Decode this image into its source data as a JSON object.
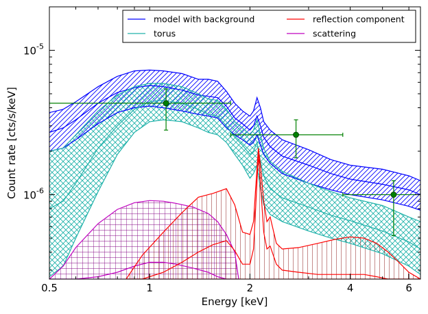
{
  "chart_data": {
    "type": "line",
    "xlabel": "Energy [keV]",
    "ylabel": "Count rate [cts/s/keV]",
    "xscale": "log",
    "yscale": "log",
    "xlim": [
      0.5,
      6.5
    ],
    "ylim": [
      2.6e-07,
      2e-05
    ],
    "x_ticks": [
      {
        "value": 0.5,
        "label": "0.5"
      },
      {
        "value": 1,
        "label": "1"
      },
      {
        "value": 2,
        "label": "2"
      },
      {
        "value": 4,
        "label": "4"
      },
      {
        "value": 6,
        "label": "6"
      }
    ],
    "y_ticks": [
      {
        "value": 1e-06,
        "base": "10",
        "exp": "-6"
      },
      {
        "value": 1e-05,
        "base": "10",
        "exp": "-5"
      }
    ],
    "legend": {
      "placement": "top-right",
      "columns": 2,
      "entries": [
        {
          "label": "model with background",
          "color": "#0000ff"
        },
        {
          "label": "reflection component",
          "color": "#ff0000"
        },
        {
          "label": "torus",
          "color": "#20b2aa"
        },
        {
          "label": "scattering",
          "color": "#bf00bf"
        }
      ]
    },
    "bands": [
      {
        "name": "model with background",
        "color": "#0000ff",
        "hatch": "diagonal",
        "x": [
          0.5,
          0.55,
          0.6,
          0.7,
          0.8,
          0.9,
          1.0,
          1.1,
          1.25,
          1.4,
          1.5,
          1.6,
          1.7,
          1.8,
          1.9,
          2.0,
          2.05,
          2.1,
          2.15,
          2.2,
          2.3,
          2.5,
          3.0,
          3.5,
          4.0,
          5.0,
          6.0,
          6.5
        ],
        "upper": [
          3.7e-06,
          3.9e-06,
          4.4e-06,
          5.6e-06,
          6.6e-06,
          7.2e-06,
          7.3e-06,
          7.2e-06,
          6.9e-06,
          6.3e-06,
          6.3e-06,
          6.1e-06,
          5.2e-06,
          4.3e-06,
          3.8e-06,
          3.5e-06,
          3.8e-06,
          4.7e-06,
          4e-06,
          3.2e-06,
          2.8e-06,
          2.4e-06,
          2.05e-06,
          1.75e-06,
          1.6e-06,
          1.5e-06,
          1.35e-06,
          1.25e-06
        ],
        "lower": [
          2e-06,
          2.1e-06,
          2.4e-06,
          3.1e-06,
          3.7e-06,
          4e-06,
          4.1e-06,
          4e-06,
          3.8e-06,
          3.6e-06,
          3.5e-06,
          3.4e-06,
          2.9e-06,
          2.6e-06,
          2.4e-06,
          2.2e-06,
          2.3e-06,
          2.6e-06,
          2.2e-06,
          1.9e-06,
          1.65e-06,
          1.4e-06,
          1.2e-06,
          1.08e-06,
          1e-06,
          9.2e-07,
          8.3e-07,
          7.8e-07
        ],
        "mid": [
          2.7e-06,
          2.9e-06,
          3.3e-06,
          4.3e-06,
          5.1e-06,
          5.5e-06,
          5.7e-06,
          5.6e-06,
          5.3e-06,
          4.9e-06,
          4.8e-06,
          4.7e-06,
          4.1e-06,
          3.4e-06,
          3.1e-06,
          2.8e-06,
          3e-06,
          3.5e-06,
          3e-06,
          2.5e-06,
          2.15e-06,
          1.85e-06,
          1.6e-06,
          1.4e-06,
          1.28e-06,
          1.18e-06,
          1.08e-06,
          1e-06
        ]
      },
      {
        "name": "torus",
        "color": "#20b2aa",
        "hatch": "cross",
        "x": [
          0.5,
          0.55,
          0.6,
          0.7,
          0.8,
          0.9,
          1.0,
          1.1,
          1.25,
          1.4,
          1.5,
          1.6,
          1.7,
          1.8,
          1.9,
          2.0,
          2.05,
          2.1,
          2.15,
          2.2,
          2.3,
          2.5,
          3.0,
          3.5,
          4.0,
          5.0,
          6.0,
          6.5
        ],
        "upper": [
          2e-06,
          2.1e-06,
          2.6e-06,
          3.8e-06,
          4.9e-06,
          5.6e-06,
          5.9e-06,
          5.9e-06,
          5.6e-06,
          5e-06,
          4.6e-06,
          4.5e-06,
          3.9e-06,
          3.2e-06,
          2.9e-06,
          2.6e-06,
          2.8e-06,
          3.3e-06,
          2.6e-06,
          2.1e-06,
          1.7e-06,
          1.45e-06,
          1.2e-06,
          1.05e-06,
          9.5e-07,
          8.4e-07,
          7e-07,
          6.5e-07
        ],
        "lower": [
          2.7e-07,
          3.2e-07,
          5e-07,
          1.05e-06,
          1.9e-06,
          2.7e-06,
          3.2e-06,
          3.3e-06,
          3.2e-06,
          2.9e-06,
          2.7e-06,
          2.6e-06,
          2.3e-06,
          1.9e-06,
          1.6e-06,
          1.3e-06,
          1.4e-06,
          1.6e-06,
          1.1e-06,
          8.5e-07,
          7.3e-07,
          6.5e-07,
          5.6e-07,
          5e-07,
          4.6e-07,
          3.9e-07,
          3.2e-07,
          2.8e-07
        ],
        "mid": [
          8e-07,
          9e-07,
          1.2e-06,
          2.1e-06,
          3e-06,
          3.9e-06,
          4.4e-06,
          4.5e-06,
          4.3e-06,
          3.9e-06,
          3.6e-06,
          3.5e-06,
          3e-06,
          2.5e-06,
          2.2e-06,
          1.9e-06,
          2e-06,
          2.3e-06,
          1.7e-06,
          1.35e-06,
          1.1e-06,
          9.5e-07,
          8.2e-07,
          7.2e-07,
          6.6e-07,
          5.6e-07,
          4.7e-07,
          4.2e-07
        ]
      },
      {
        "name": "scattering",
        "color": "#bf00bf",
        "hatch": "grid",
        "x": [
          0.5,
          0.55,
          0.6,
          0.7,
          0.8,
          0.9,
          1.0,
          1.1,
          1.2,
          1.35,
          1.5,
          1.6,
          1.7,
          1.8,
          1.85
        ],
        "upper": [
          2.6e-07,
          3.2e-07,
          4.3e-07,
          6.3e-07,
          7.9e-07,
          8.8e-07,
          9.1e-07,
          9e-07,
          8.7e-07,
          8.2e-07,
          7.4e-07,
          6.5e-07,
          5.3e-07,
          4e-07,
          2.6e-07
        ],
        "lower": [
          2.6e-07,
          2.6e-07,
          2.6e-07,
          2.6e-07,
          2.6e-07,
          2.6e-07,
          2.6e-07,
          2.6e-07,
          2.6e-07,
          2.6e-07,
          2.6e-07,
          2.6e-07,
          2.6e-07,
          2.6e-07,
          2.6e-07
        ],
        "mid": [
          2.6e-07,
          2.6e-07,
          2.6e-07,
          2.7e-07,
          2.9e-07,
          3.2e-07,
          3.4e-07,
          3.4e-07,
          3.3e-07,
          3.1e-07,
          2.9e-07,
          2.7e-07,
          2.6e-07,
          2.6e-07,
          2.6e-07
        ]
      },
      {
        "name": "reflection component",
        "color": "#ff0000",
        "hatch": "vertical",
        "x": [
          0.85,
          0.95,
          1.1,
          1.25,
          1.4,
          1.55,
          1.7,
          1.8,
          1.9,
          2.0,
          2.05,
          2.08,
          2.12,
          2.15,
          2.2,
          2.25,
          2.3,
          2.4,
          2.5,
          2.8,
          3.2,
          3.6,
          4.0,
          4.4,
          4.8,
          5.2,
          5.6,
          6.0,
          6.5
        ],
        "upper": [
          2.6e-07,
          3.8e-07,
          5.5e-07,
          7.5e-07,
          9.6e-07,
          1.02e-06,
          1.1e-06,
          8.5e-07,
          5.5e-07,
          5.3e-07,
          6.5e-07,
          1.1e-06,
          2.1e-06,
          1.6e-06,
          9e-07,
          6.5e-07,
          7e-07,
          4.6e-07,
          4.2e-07,
          4.3e-07,
          4.6e-07,
          4.9e-07,
          5.1e-07,
          5e-07,
          4.6e-07,
          4e-07,
          3.4e-07,
          2.9e-07,
          2.6e-07
        ],
        "lower": [
          2.6e-07,
          2.6e-07,
          2.6e-07,
          2.6e-07,
          2.6e-07,
          2.6e-07,
          2.6e-07,
          2.6e-07,
          2.6e-07,
          2.6e-07,
          2.6e-07,
          2.6e-07,
          2.6e-07,
          2.6e-07,
          2.6e-07,
          2.6e-07,
          2.6e-07,
          2.6e-07,
          2.6e-07,
          2.6e-07,
          2.6e-07,
          2.6e-07,
          2.6e-07,
          2.6e-07,
          2.6e-07,
          2.6e-07,
          2.6e-07,
          2.6e-07,
          2.6e-07
        ],
        "mid": [
          2.6e-07,
          2.6e-07,
          2.9e-07,
          3.4e-07,
          4e-07,
          4.5e-07,
          4.8e-07,
          4.1e-07,
          3.3e-07,
          3.3e-07,
          4.2e-07,
          8e-07,
          1.9e-06,
          1.2e-06,
          5.5e-07,
          4.2e-07,
          4.4e-07,
          3.3e-07,
          3e-07,
          2.9e-07,
          2.8e-07,
          2.8e-07,
          2.8e-07,
          2.8e-07,
          2.7e-07,
          2.6e-07,
          2.6e-07,
          2.6e-07,
          2.6e-07
        ]
      }
    ],
    "data_points": {
      "color": "#008000",
      "points": [
        {
          "x": 1.12,
          "y": 4.3e-06,
          "xerr": [
            0.5,
            1.75
          ],
          "yerr": [
            2.8e-06,
            5.4e-06
          ]
        },
        {
          "x": 2.75,
          "y": 2.6e-06,
          "xerr": [
            1.75,
            3.8
          ],
          "yerr": [
            1.8e-06,
            3.3e-06
          ]
        },
        {
          "x": 5.4,
          "y": 1e-06,
          "xerr": [
            3.8,
            6.5
          ],
          "yerr": [
            5.2e-07,
            1.25e-06
          ]
        }
      ]
    }
  }
}
